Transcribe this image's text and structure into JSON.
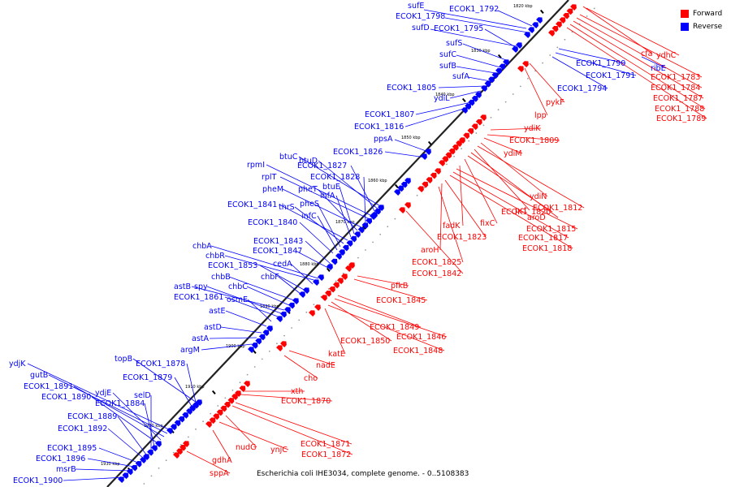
{
  "caption": "Escherichia coli IHE3034, complete genome. - 0..5108383",
  "legend": {
    "forward_label": "Forward",
    "reverse_label": "Reverse",
    "forward_color": "#ff0000",
    "reverse_color": "#0000ff"
  },
  "ticks": [
    "1820 kbp",
    "1830 kbp",
    "1840 kbp",
    "1850 kbp",
    "1860 kbp",
    "1870 kbp",
    "1880 kbp",
    "1890 kbp",
    "1900 kbp",
    "1910 kbp",
    "1920 kbp",
    "1930 kbp"
  ],
  "reverse_labels": [
    "sufE",
    "ECOK1_1798",
    "ECOK1_1792",
    "sufD",
    "ECOK1_1795",
    "sufS",
    "sufC",
    "sufB",
    "sufA",
    "ECOK1_1805",
    "ydiL",
    "ECOK1_1807",
    "ECOK1_1816",
    "ppsA",
    "ECOK1_1826",
    "btuC",
    "btuD",
    "ECOK1_1827",
    "rpmI",
    "rplT",
    "ECOK1_1828",
    "pheM",
    "pheT",
    "btuE",
    "ihfA",
    "ECOK1_1841",
    "thrS",
    "pheS",
    "infC",
    "ECOK1_1840",
    "ECOK1_1843",
    "ECOK1_1847",
    "chbA",
    "chbR",
    "cedA",
    "ECOK1_1853",
    "chbF",
    "chbB",
    "chbC",
    "astB",
    "spy",
    "ECOK1_1861",
    "osmE",
    "astE",
    "astD",
    "astA",
    "argM",
    "topB",
    "ECOK1_1878",
    "ECOK1_1879",
    "ydjK",
    "gutB",
    "ECOK1_1891",
    "ydjE",
    "ECOK1_1890",
    "ECOK1_1884",
    "selD",
    "ECOK1_1889",
    "ECOK1_1892",
    "ECOK1_1895",
    "ECOK1_1896",
    "msrB",
    "ECOK1_1900",
    "ECOK1_1790",
    "ECOK1_1791",
    "ECOK1_1794",
    "ribE"
  ],
  "forward_labels": [
    "cfa",
    "ydhC",
    "ECOK1_1783",
    "ECOK1_1784",
    "ECOK1_1787",
    "ECOK1_1788",
    "ECOK1_1789",
    "pykF",
    "lpp",
    "ydiK",
    "ECOK1_1809",
    "ydiM",
    "ydiN",
    "ECOK1_1812",
    "pct",
    "aroD",
    "ECOK1_1820",
    "fixC",
    "fadK",
    "ECOK1_1815",
    "ECOK1_1817",
    "ECOK1_1818",
    "ECOK1_1823",
    "aroH",
    "ECOK1_1825",
    "ECOK1_1842",
    "pfkB",
    "ECOK1_1845",
    "ECOK1_1849",
    "ECOK1_1846",
    "ECOK1_1850",
    "ECOK1_1848",
    "katE",
    "nadE",
    "cho",
    "xth",
    "ECOK1_1870",
    "nudG",
    "ynjC",
    "ECOK1_1871",
    "ECOK1_1872",
    "gdhA",
    "sppA"
  ]
}
